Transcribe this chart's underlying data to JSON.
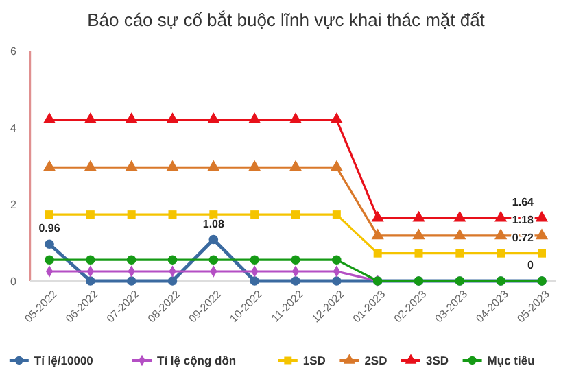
{
  "chart_data": {
    "type": "line",
    "title": "Báo cáo sự cố bắt buộc lĩnh vực khai thác mặt đất",
    "categories": [
      "05-2022",
      "06-2022",
      "07-2022",
      "08-2022",
      "09-2022",
      "10-2022",
      "11-2022",
      "12-2022",
      "01-2023",
      "02-2023",
      "03-2023",
      "04-2023",
      "05-2023"
    ],
    "series": [
      {
        "name": "Tỉ lệ/10000",
        "color": "#3b6aa0",
        "marker": "circle",
        "values": [
          0.96,
          0,
          0,
          0,
          1.08,
          0,
          0,
          0,
          0,
          0,
          0,
          0,
          0
        ],
        "value_labels": [
          "0.96",
          null,
          null,
          null,
          "1.08",
          null,
          null,
          null,
          null,
          null,
          null,
          null,
          "0"
        ]
      },
      {
        "name": "Tỉ lệ cộng dồn",
        "color": "#b44fc4",
        "marker": "diamond",
        "values": [
          0.25,
          0.25,
          0.25,
          0.25,
          0.25,
          0.25,
          0.25,
          0.25,
          0,
          null,
          null,
          null,
          null
        ]
      },
      {
        "name": "1SD",
        "color": "#f5c400",
        "marker": "square",
        "values": [
          1.73,
          1.73,
          1.73,
          1.73,
          1.73,
          1.73,
          1.73,
          1.73,
          0.72,
          0.72,
          0.72,
          0.72,
          0.72
        ],
        "value_labels": [
          null,
          null,
          null,
          null,
          null,
          null,
          null,
          null,
          null,
          null,
          null,
          null,
          "0.72"
        ]
      },
      {
        "name": "2SD",
        "color": "#d9782a",
        "marker": "triangle",
        "values": [
          2.96,
          2.96,
          2.96,
          2.96,
          2.96,
          2.96,
          2.96,
          2.96,
          1.18,
          1.18,
          1.18,
          1.18,
          1.18
        ],
        "value_labels": [
          null,
          null,
          null,
          null,
          null,
          null,
          null,
          null,
          null,
          null,
          null,
          null,
          "1.18"
        ]
      },
      {
        "name": "3SD",
        "color": "#e8101a",
        "marker": "triangle",
        "values": [
          4.2,
          4.2,
          4.2,
          4.2,
          4.2,
          4.2,
          4.2,
          4.2,
          1.64,
          1.64,
          1.64,
          1.64,
          1.64
        ],
        "value_labels": [
          null,
          null,
          null,
          null,
          null,
          null,
          null,
          null,
          null,
          null,
          null,
          null,
          "1.64"
        ]
      },
      {
        "name": "Mục tiêu",
        "color": "#159a15",
        "marker": "circle",
        "values": [
          0.55,
          0.55,
          0.55,
          0.55,
          0.55,
          0.55,
          0.55,
          0.55,
          0,
          0,
          0,
          0,
          0
        ]
      }
    ],
    "ylim": [
      0,
      6
    ],
    "yticks": [
      0,
      2,
      4,
      6
    ],
    "grid": false,
    "legend": "bottom"
  }
}
